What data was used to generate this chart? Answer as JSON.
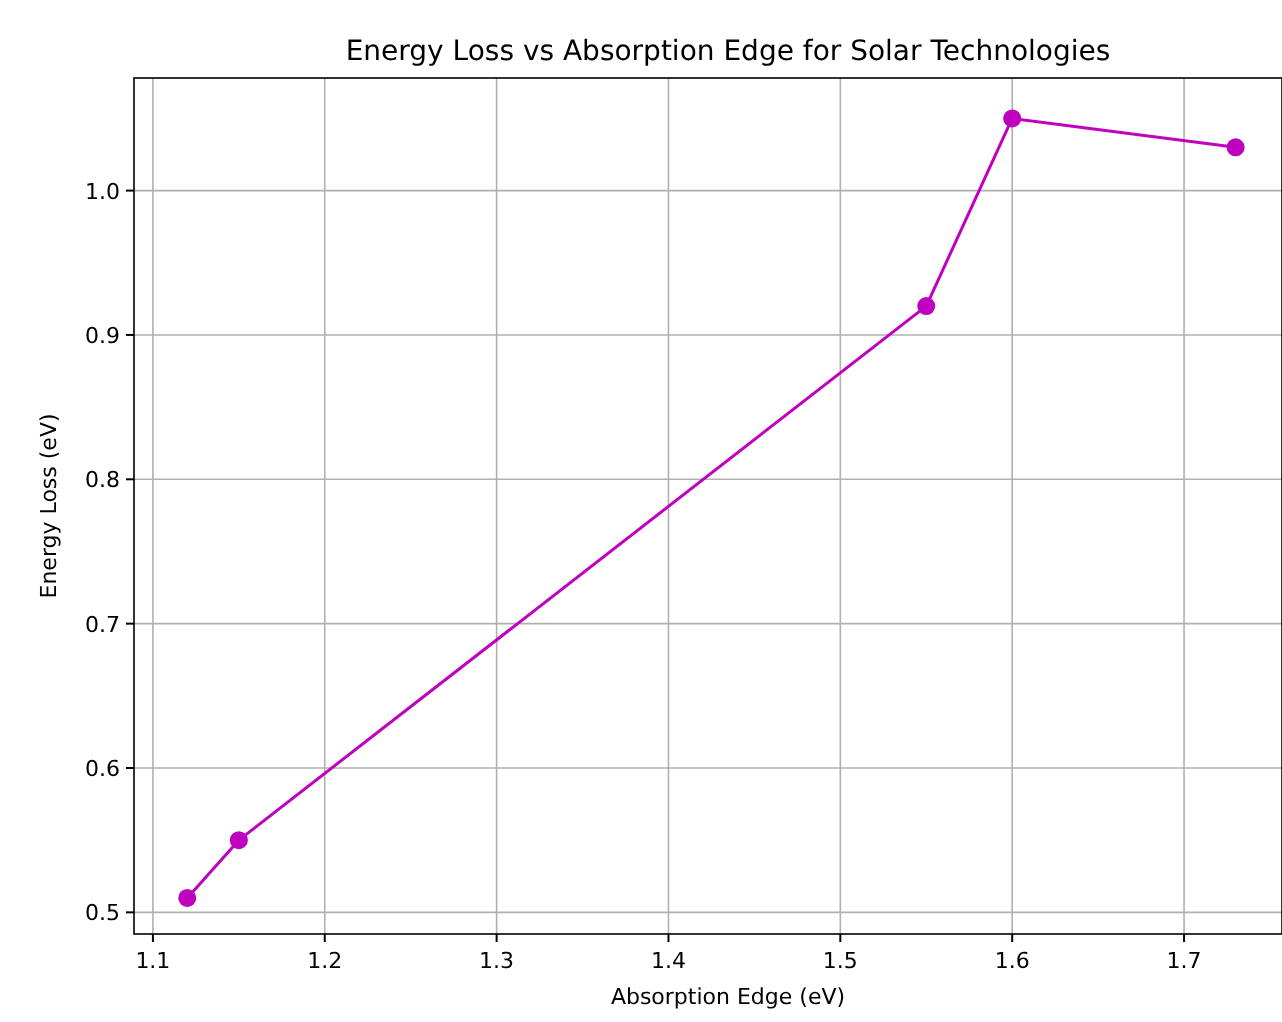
{
  "chart_data": {
    "type": "line",
    "title": "Energy Loss vs Absorption Edge for Solar Technologies",
    "xlabel": "Absorption Edge (eV)",
    "ylabel": "Energy Loss (eV)",
    "x": [
      1.12,
      1.15,
      1.55,
      1.6,
      1.73
    ],
    "series": [
      {
        "color": "#bf00bf",
        "values": [
          0.51,
          0.55,
          0.92,
          1.05,
          1.03
        ]
      }
    ],
    "xlim": [
      1.089,
      1.757
    ],
    "xticks": [
      1.1,
      1.2,
      1.3,
      1.4,
      1.5,
      1.6,
      1.7
    ],
    "ylim": [
      0.485,
      1.078
    ],
    "yticks": [
      0.5,
      0.6,
      0.7,
      0.8,
      0.9,
      {
        "value": 1,
        "label": "1.0"
      }
    ],
    "grid": true,
    "marker": "circle",
    "line_style": "solid"
  }
}
